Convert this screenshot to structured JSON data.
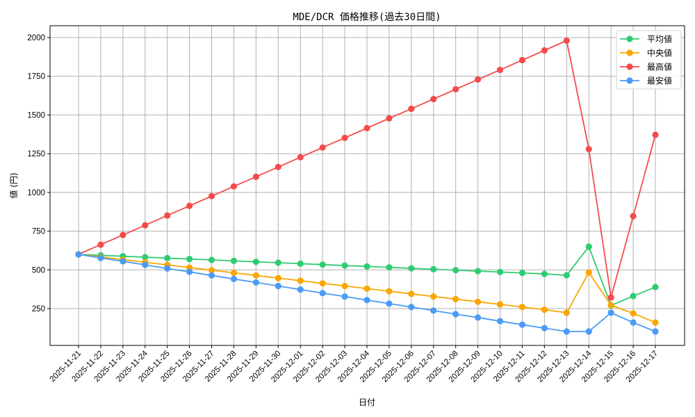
{
  "chart_data": {
    "type": "line",
    "title": "MDE/DCR 価格推移(過去30日間)",
    "xlabel": "日付",
    "ylabel": "値 (円)",
    "ylim": [
      75,
      2075
    ],
    "yticks": [
      250,
      500,
      750,
      1000,
      1250,
      1500,
      1750,
      2000
    ],
    "grid": true,
    "legend_position": "upper right",
    "categories": [
      "2025-11-21",
      "2025-11-22",
      "2025-11-23",
      "2025-11-24",
      "2025-11-25",
      "2025-11-26",
      "2025-11-27",
      "2025-11-28",
      "2025-11-29",
      "2025-11-30",
      "2025-12-01",
      "2025-12-02",
      "2025-12-03",
      "2025-12-04",
      "2025-12-05",
      "2025-12-06",
      "2025-12-07",
      "2025-12-08",
      "2025-12-09",
      "2025-12-10",
      "2025-12-11",
      "2025-12-12",
      "2025-12-13",
      "2025-12-14",
      "2025-12-15",
      "2025-12-16",
      "2025-12-17"
    ],
    "series": [
      {
        "name": "平均値",
        "color": "#2ecc71",
        "values": [
          600,
          594,
          588,
          582,
          576,
          570,
          564,
          558,
          552,
          546,
          540,
          534,
          528,
          522,
          516,
          510,
          504,
          498,
          492,
          486,
          480,
          474,
          465,
          650,
          270,
          331,
          389
        ]
      },
      {
        "name": "中央値",
        "color": "#f9a602",
        "values": [
          600,
          583,
          566,
          549,
          532,
          515,
          498,
          481,
          464,
          447,
          430,
          413,
          396,
          379,
          362,
          345,
          328,
          311,
          294,
          277,
          260,
          243,
          223,
          483,
          272,
          219,
          160
        ]
      },
      {
        "name": "最高値",
        "color": "#f44b4b",
        "values": [
          600,
          663,
          725,
          788,
          851,
          913,
          976,
          1039,
          1101,
          1164,
          1227,
          1290,
          1352,
          1415,
          1478,
          1540,
          1603,
          1666,
          1729,
          1791,
          1854,
          1917,
          1980,
          1280,
          322,
          847,
          1372
        ]
      },
      {
        "name": "最安値",
        "color": "#4b9bf5",
        "values": [
          600,
          577,
          555,
          532,
          509,
          487,
          464,
          441,
          419,
          396,
          373,
          350,
          328,
          305,
          282,
          260,
          237,
          214,
          192,
          169,
          146,
          124,
          102,
          102,
          223,
          160,
          102
        ]
      }
    ]
  }
}
